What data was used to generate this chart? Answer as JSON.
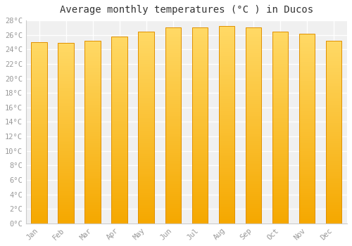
{
  "title": "Average monthly temperatures (°C ) in Ducos",
  "months": [
    "Jan",
    "Feb",
    "Mar",
    "Apr",
    "May",
    "Jun",
    "Jul",
    "Aug",
    "Sep",
    "Oct",
    "Nov",
    "Dec"
  ],
  "values": [
    25.0,
    24.9,
    25.2,
    25.8,
    26.5,
    27.0,
    27.0,
    27.2,
    27.0,
    26.5,
    26.2,
    25.2
  ],
  "bar_color_bottom": "#F5A800",
  "bar_color_top": "#FFD966",
  "bar_edge_color": "#E09000",
  "ylim": [
    0,
    28
  ],
  "ytick_step": 2,
  "background_color": "#FFFFFF",
  "plot_bg_color": "#F0F0F0",
  "grid_color": "#FFFFFF",
  "font_color": "#999999",
  "title_fontsize": 10,
  "tick_fontsize": 7.5,
  "font_family": "monospace",
  "bar_width": 0.6
}
